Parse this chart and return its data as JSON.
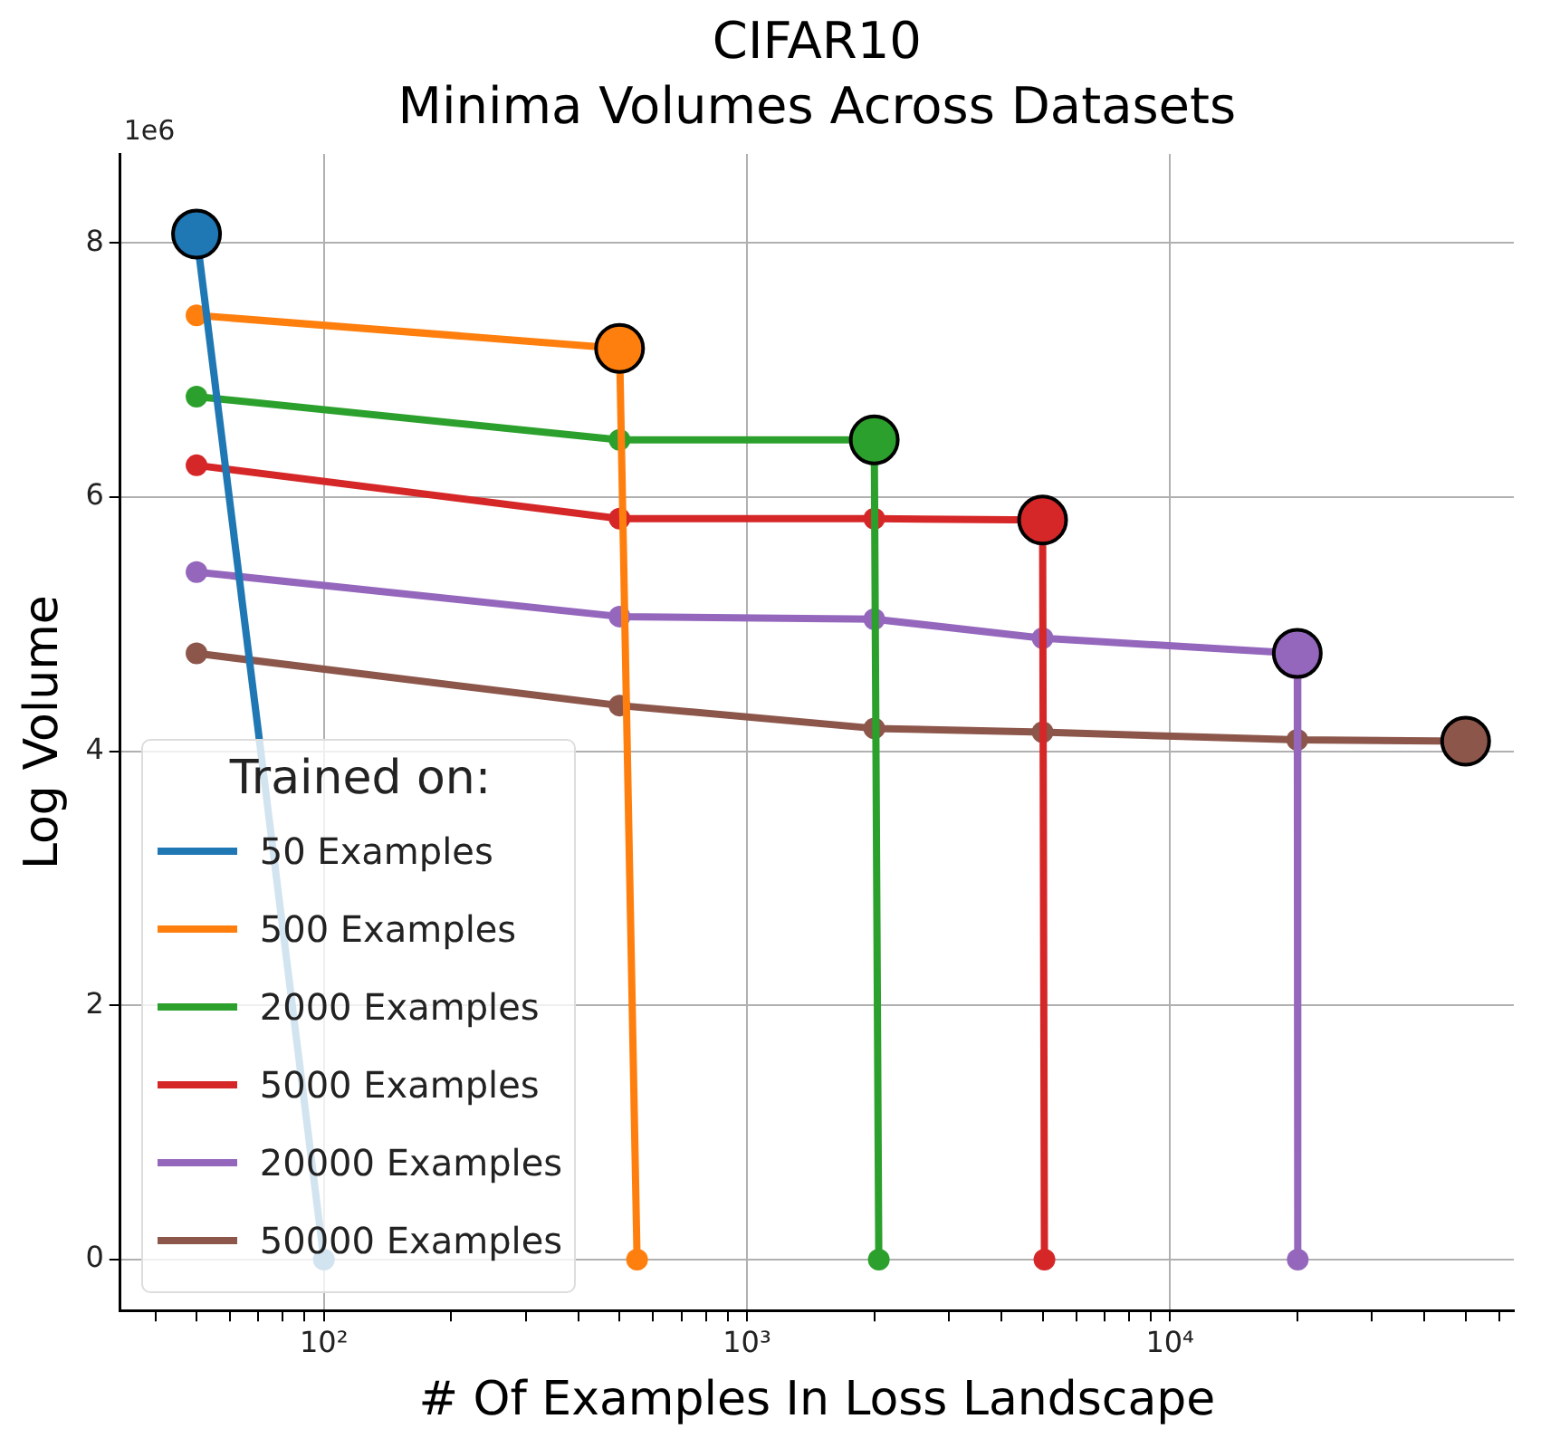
{
  "chart_data": {
    "type": "line",
    "title": "CIFAR10",
    "subtitle": "Minima Volumes Across Datasets",
    "xlabel": "# Of Examples In Loss Landscape",
    "ylabel": "Log Volume",
    "legend_title": "Trained on:",
    "legend": "bottom left",
    "grid": true,
    "marker": "circle",
    "log": "x",
    "xlim": [
      33,
      65000
    ],
    "xticks": [
      {
        "value": 40,
        "label": null
      },
      {
        "value": 50,
        "label": null
      },
      {
        "value": 60,
        "label": null
      },
      {
        "value": 70,
        "label": null
      },
      {
        "value": 80,
        "label": null
      },
      {
        "value": 90,
        "label": null
      },
      {
        "value": 100,
        "label": "10²"
      },
      {
        "value": 200,
        "label": null
      },
      {
        "value": 300,
        "label": null
      },
      {
        "value": 400,
        "label": null
      },
      {
        "value": 500,
        "label": null
      },
      {
        "value": 600,
        "label": null
      },
      {
        "value": 700,
        "label": null
      },
      {
        "value": 800,
        "label": null
      },
      {
        "value": 900,
        "label": null
      },
      {
        "value": 1000,
        "label": "10³"
      },
      {
        "value": 2000,
        "label": null
      },
      {
        "value": 3000,
        "label": null
      },
      {
        "value": 4000,
        "label": null
      },
      {
        "value": 5000,
        "label": null
      },
      {
        "value": 6000,
        "label": null
      },
      {
        "value": 7000,
        "label": null
      },
      {
        "value": 8000,
        "label": null
      },
      {
        "value": 9000,
        "label": null
      },
      {
        "value": 10000,
        "label": "10⁴"
      },
      {
        "value": 20000,
        "label": null
      },
      {
        "value": 30000,
        "label": null
      },
      {
        "value": 40000,
        "label": null
      },
      {
        "value": 50000,
        "label": null
      },
      {
        "value": 60000,
        "label": null
      }
    ],
    "ylim": [
      -0.4,
      8.7
    ],
    "yticks": [
      0,
      2,
      4,
      6,
      8
    ],
    "annotations": [
      "1e6"
    ],
    "series": [
      {
        "name": "50 Examples",
        "color": "#1f77b4",
        "x": [
          50,
          100
        ],
        "values": [
          8.07,
          0
        ]
      },
      {
        "name": "500 Examples",
        "color": "#ff7f0e",
        "x": [
          50,
          500,
          550
        ],
        "values": [
          7.43,
          7.17,
          0
        ]
      },
      {
        "name": "2000 Examples",
        "color": "#2ca02c",
        "x": [
          50,
          500,
          2000,
          2050
        ],
        "values": [
          6.79,
          6.45,
          6.45,
          0
        ]
      },
      {
        "name": "5000 Examples",
        "color": "#d62728",
        "x": [
          50,
          500,
          2000,
          5000,
          5050
        ],
        "values": [
          6.25,
          5.83,
          5.83,
          5.82,
          0
        ]
      },
      {
        "name": "20000 Examples",
        "color": "#9467bd",
        "x": [
          50,
          500,
          2000,
          5000,
          20000,
          20050
        ],
        "values": [
          5.41,
          5.06,
          5.04,
          4.89,
          4.77,
          0
        ]
      },
      {
        "name": "50000 Examples",
        "color": "#8c564b",
        "x": [
          50,
          500,
          2000,
          5000,
          20000,
          50000
        ],
        "values": [
          4.77,
          4.36,
          4.18,
          4.15,
          4.09,
          4.08
        ]
      },
      {
        "type": "scatter",
        "x": [
          50,
          500,
          2000,
          5000,
          20000,
          50000
        ],
        "values": [
          8.07,
          7.17,
          6.45,
          5.82,
          4.77,
          4.08
        ],
        "colors": [
          "#1f77b4",
          "#ff7f0e",
          "#2ca02c",
          "#d62728",
          "#9467bd",
          "#8c564b"
        ]
      }
    ]
  }
}
